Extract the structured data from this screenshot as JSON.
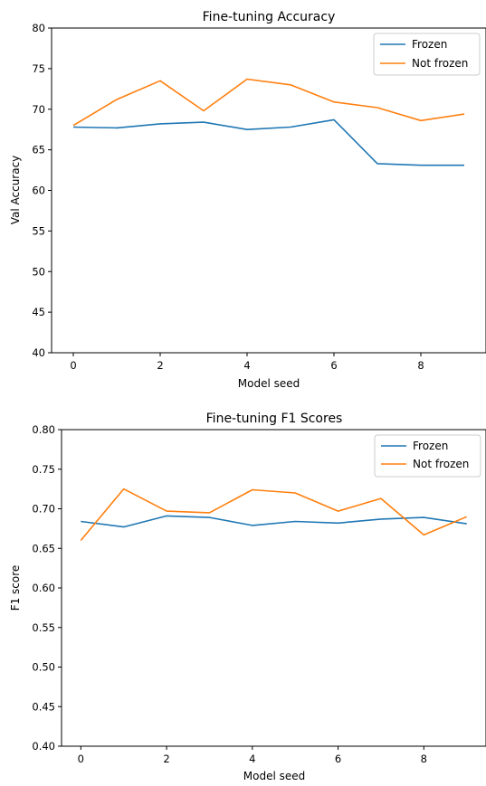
{
  "colors": {
    "frozen": "#1f77b4",
    "not_frozen": "#ff7f0e"
  },
  "chart_data": [
    {
      "type": "line",
      "title": "Fine-tuning Accuracy",
      "xlabel": "Model seed",
      "ylabel": "Val Accuracy",
      "x": [
        0,
        1,
        2,
        3,
        4,
        5,
        6,
        7,
        8,
        9
      ],
      "xlim": [
        -0.5,
        9.5
      ],
      "ylim": [
        40,
        80
      ],
      "xticks": [
        0,
        2,
        4,
        6,
        8
      ],
      "xtick_labels": [
        "0",
        "2",
        "4",
        "6",
        "8"
      ],
      "yticks": [
        40,
        45,
        50,
        55,
        60,
        65,
        70,
        75,
        80
      ],
      "ytick_labels": [
        "40",
        "45",
        "50",
        "55",
        "60",
        "65",
        "70",
        "75",
        "80"
      ],
      "grid": false,
      "legend_position": "top-right",
      "series": [
        {
          "name": "Frozen",
          "color": "#1f77b4",
          "values": [
            67.8,
            67.7,
            68.2,
            68.4,
            67.5,
            67.8,
            68.7,
            63.3,
            63.1,
            63.1
          ]
        },
        {
          "name": "Not frozen",
          "color": "#ff7f0e",
          "values": [
            68.0,
            71.2,
            73.5,
            69.8,
            73.7,
            73.0,
            70.9,
            70.2,
            68.6,
            69.4
          ]
        }
      ]
    },
    {
      "type": "line",
      "title": "Fine-tuning F1 Scores",
      "xlabel": "Model seed",
      "ylabel": "F1 score",
      "x": [
        0,
        1,
        2,
        3,
        4,
        5,
        6,
        7,
        8,
        9
      ],
      "xlim": [
        -0.45,
        9.45
      ],
      "ylim": [
        0.4,
        0.8
      ],
      "xticks": [
        0,
        2,
        4,
        6,
        8
      ],
      "xtick_labels": [
        "0",
        "2",
        "4",
        "6",
        "8"
      ],
      "yticks": [
        0.4,
        0.45,
        0.5,
        0.55,
        0.6,
        0.65,
        0.7,
        0.75,
        0.8
      ],
      "ytick_labels": [
        "0.40",
        "0.45",
        "0.50",
        "0.55",
        "0.60",
        "0.65",
        "0.70",
        "0.75",
        "0.80"
      ],
      "grid": false,
      "legend_position": "top-right",
      "series": [
        {
          "name": "Frozen",
          "color": "#1f77b4",
          "values": [
            0.684,
            0.677,
            0.691,
            0.689,
            0.679,
            0.684,
            0.682,
            0.687,
            0.689,
            0.681
          ]
        },
        {
          "name": "Not frozen",
          "color": "#ff7f0e",
          "values": [
            0.66,
            0.725,
            0.697,
            0.695,
            0.724,
            0.72,
            0.697,
            0.713,
            0.667,
            0.69
          ]
        }
      ]
    }
  ]
}
